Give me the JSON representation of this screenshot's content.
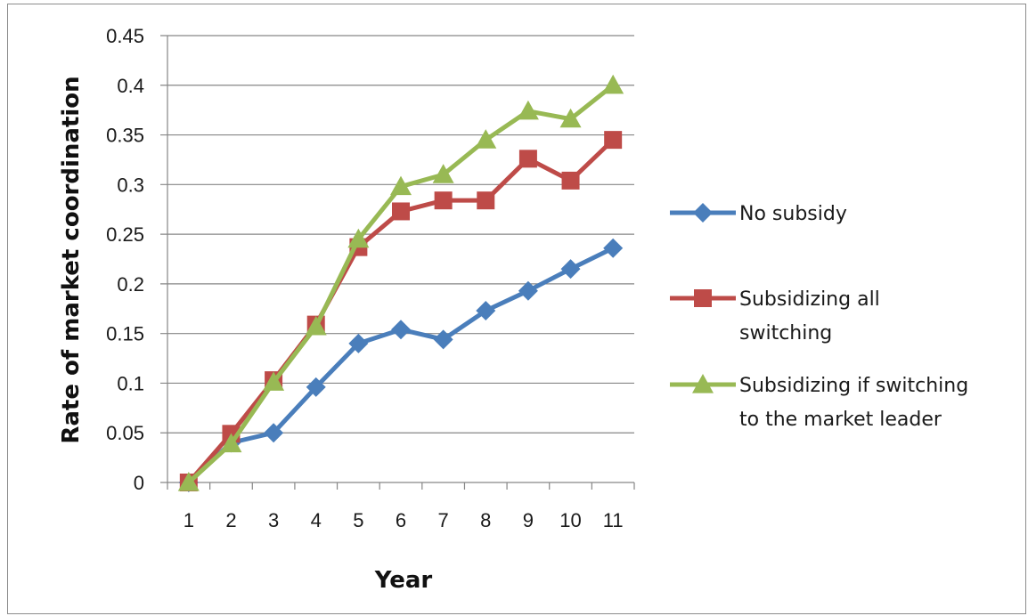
{
  "chart_data": {
    "type": "line",
    "title": "",
    "xlabel": "Year",
    "ylabel": "Rate of market coordination",
    "x": [
      1,
      2,
      3,
      4,
      5,
      6,
      7,
      8,
      9,
      10,
      11
    ],
    "ylim": [
      0,
      0.45
    ],
    "yticks": [
      "0",
      "0.05",
      "0.1",
      "0.15",
      "0.2",
      "0.25",
      "0.3",
      "0.35",
      "0.4",
      "0.45"
    ],
    "grid": "horizontal",
    "legend_position": "right",
    "series": [
      {
        "name": "No subsidy",
        "legend_lines": [
          "No subsidy"
        ],
        "color": "#4a7ebb",
        "marker": "diamond",
        "values": [
          0,
          0.04,
          0.05,
          0.096,
          0.14,
          0.154,
          0.144,
          0.173,
          0.193,
          0.215,
          0.236
        ]
      },
      {
        "name": "Subsidizing all switching",
        "legend_lines": [
          "Subsidizing all",
          "switching"
        ],
        "color": "#be4b48",
        "marker": "square",
        "values": [
          0,
          0.049,
          0.103,
          0.159,
          0.237,
          0.273,
          0.284,
          0.284,
          0.326,
          0.304,
          0.345
        ]
      },
      {
        "name": "Subsidizing if switching to the market leader",
        "legend_lines": [
          "Subsidizing if switching",
          "to the market leader"
        ],
        "color": "#98b954",
        "marker": "triangle",
        "values": [
          0,
          0.039,
          0.101,
          0.157,
          0.245,
          0.298,
          0.31,
          0.345,
          0.374,
          0.366,
          0.4
        ]
      }
    ]
  }
}
